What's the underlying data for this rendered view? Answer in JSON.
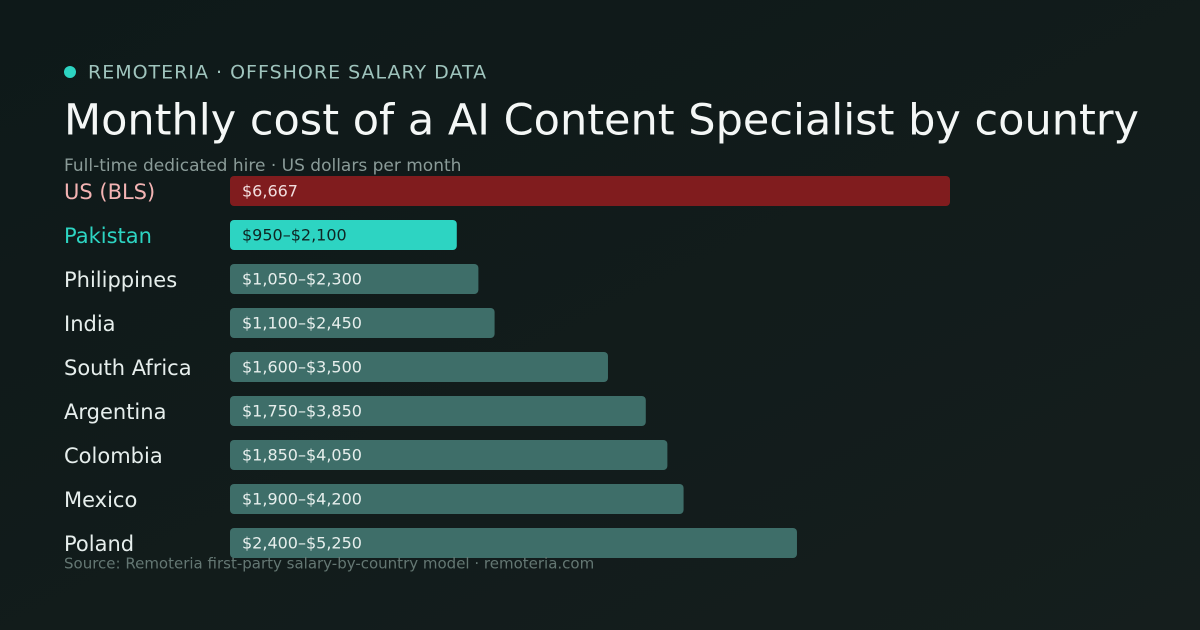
{
  "chart_data": {
    "type": "bar",
    "kicker": "REMOTERIA · OFFSHORE SALARY DATA",
    "title": "Monthly cost of a AI Content Specialist by country",
    "subtitle": "Full-time dedicated hire · US dollars per month",
    "source": "Source: Remoteria first-party salary-by-country model · remoteria.com",
    "categories": [
      "US (BLS)",
      "Pakistan",
      "Philippines",
      "India",
      "South Africa",
      "Argentina",
      "Colombia",
      "Mexico",
      "Poland"
    ],
    "values_low": [
      6667,
      950,
      1050,
      1100,
      1600,
      1750,
      1850,
      1900,
      2400
    ],
    "values_high": [
      6667,
      2100,
      2300,
      2450,
      3500,
      3850,
      4050,
      4200,
      5250
    ],
    "value_labels": [
      "$6,667",
      "$950–$2,100",
      "$1,050–$2,300",
      "$1,100–$2,450",
      "$1,600–$3,500",
      "$1,750–$3,850",
      "$1,850–$4,050",
      "$1,900–$4,200",
      "$2,400–$5,250"
    ],
    "colors": [
      "#801c1e",
      "#2dd4c2",
      "#3e6e69",
      "#3e6e69",
      "#3e6e69",
      "#3e6e69",
      "#3e6e69",
      "#3e6e69",
      "#3e6e69"
    ],
    "label_colors": [
      "#f3b3b3",
      "#2dd4c2",
      "#e6eeec",
      "#e6eeec",
      "#e6eeec",
      "#e6eeec",
      "#e6eeec",
      "#e6eeec",
      "#e6eeec"
    ],
    "value_text_colors": [
      "#f1dede",
      "#0f2624",
      "#e6eeec",
      "#e6eeec",
      "#e6eeec",
      "#e6eeec",
      "#e6eeec",
      "#e6eeec",
      "#e6eeec"
    ]
  }
}
